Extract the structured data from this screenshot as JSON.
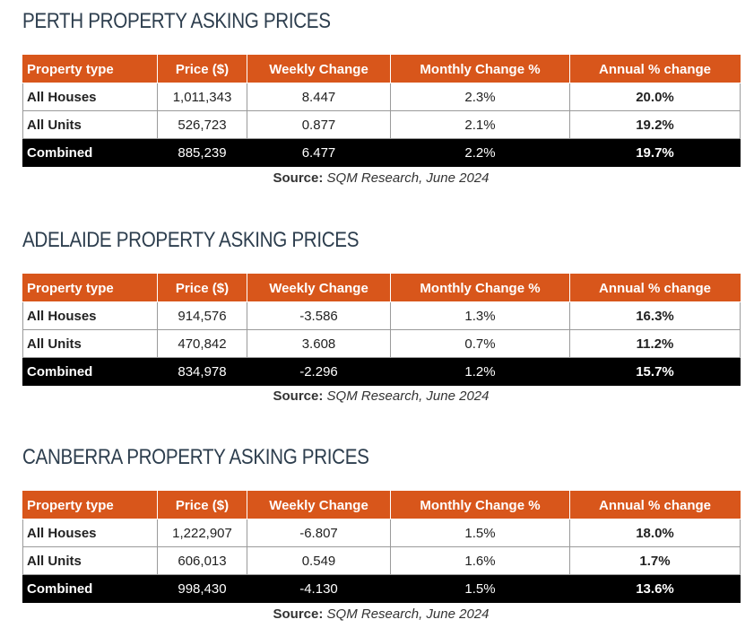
{
  "columns": [
    "Property type",
    "Price ($)",
    "Weekly Change",
    "Monthly Change %",
    "Annual % change"
  ],
  "source_label": "Source:",
  "source_text": "SQM Research, June 2024",
  "tables": [
    {
      "title": "PERTH PROPERTY ASKING PRICES",
      "rows": [
        {
          "type": "All Houses",
          "price": "1,011,343",
          "weekly": "8.447",
          "monthly": "2.3%",
          "annual": "20.0%"
        },
        {
          "type": "All Units",
          "price": "526,723",
          "weekly": "0.877",
          "monthly": "2.1%",
          "annual": "19.2%"
        },
        {
          "type": "Combined",
          "price": "885,239",
          "weekly": "6.477",
          "monthly": "2.2%",
          "annual": "19.7%"
        }
      ]
    },
    {
      "title": "ADELAIDE PROPERTY ASKING PRICES",
      "rows": [
        {
          "type": "All Houses",
          "price": "914,576",
          "weekly": "-3.586",
          "monthly": "1.3%",
          "annual": "16.3%"
        },
        {
          "type": "All Units",
          "price": "470,842",
          "weekly": "3.608",
          "monthly": "0.7%",
          "annual": "11.2%"
        },
        {
          "type": "Combined",
          "price": "834,978",
          "weekly": "-2.296",
          "monthly": "1.2%",
          "annual": "15.7%"
        }
      ]
    },
    {
      "title": "CANBERRA PROPERTY ASKING PRICES",
      "rows": [
        {
          "type": "All Houses",
          "price": "1,222,907",
          "weekly": "-6.807",
          "monthly": "1.5%",
          "annual": "18.0%"
        },
        {
          "type": "All Units",
          "price": "606,013",
          "weekly": "0.549",
          "monthly": "1.6%",
          "annual": "1.7%"
        },
        {
          "type": "Combined",
          "price": "998,430",
          "weekly": "-4.130",
          "monthly": "1.5%",
          "annual": "13.6%"
        }
      ]
    }
  ],
  "colors": {
    "header_bg": "#d8561b",
    "combined_bg": "#000000",
    "title": "#2d3e4e"
  }
}
